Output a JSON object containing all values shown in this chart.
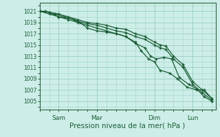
{
  "bg_color": "#cdeee8",
  "grid_color": "#a0d4c8",
  "line_color": "#1a5c35",
  "marker_color": "#1a5c35",
  "xlabel": "Pression niveau de la mer( hPa )",
  "xlabel_fontsize": 7.5,
  "yticks": [
    1005,
    1007,
    1009,
    1011,
    1013,
    1015,
    1017,
    1019,
    1021
  ],
  "ylim": [
    1003.5,
    1022.5
  ],
  "xtick_labels": [
    "Sam",
    "Mar",
    "Dim",
    "Lun"
  ],
  "xtick_positions": [
    1,
    3,
    6,
    8
  ],
  "xlim": [
    0,
    9.2
  ],
  "series": [
    [
      0,
      1021,
      0.3,
      1021,
      0.8,
      1020.5,
      1.3,
      1020,
      1.8,
      1019.5,
      2.1,
      1019,
      2.5,
      1018,
      3.0,
      1017.5,
      3.5,
      1017.3,
      4.0,
      1017,
      4.5,
      1016.5,
      5.0,
      1015.5,
      5.3,
      1014,
      5.7,
      1012.5,
      6.0,
      1012,
      6.3,
      1010.5,
      6.8,
      1010,
      7.2,
      1009,
      7.7,
      1007.5,
      8.2,
      1007,
      8.6,
      1007,
      9.0,
      1005.5
    ],
    [
      0,
      1021,
      0.5,
      1020.8,
      1.0,
      1020,
      1.5,
      1019.5,
      2.0,
      1019,
      2.5,
      1018.5,
      3.0,
      1018,
      3.5,
      1017.5,
      4.0,
      1017,
      4.5,
      1016.5,
      5.0,
      1015.3,
      5.5,
      1014.5,
      5.8,
      1013,
      6.1,
      1012.5,
      6.5,
      1012.8,
      6.9,
      1012.5,
      7.3,
      1009.2,
      7.8,
      1008,
      8.2,
      1007.2,
      8.6,
      1005.8,
      9.0,
      1005
    ],
    [
      0,
      1021,
      0.5,
      1020.5,
      1.0,
      1020,
      1.5,
      1019.8,
      2.0,
      1019.2,
      2.5,
      1018.8,
      3.0,
      1018.5,
      3.5,
      1018,
      4.0,
      1017.5,
      4.5,
      1017.2,
      5.0,
      1016.5,
      5.5,
      1016,
      6.0,
      1015,
      6.3,
      1014.5,
      6.6,
      1014.2,
      7.0,
      1012.5,
      7.5,
      1011,
      8.0,
      1008,
      8.5,
      1006.5,
      9.0,
      1005.2
    ],
    [
      0,
      1021,
      0.5,
      1020.8,
      1.0,
      1020.5,
      1.5,
      1020,
      2.0,
      1019.5,
      2.5,
      1019,
      3.0,
      1018.8,
      3.5,
      1018.5,
      4.0,
      1018,
      4.5,
      1017.8,
      5.0,
      1017,
      5.5,
      1016.5,
      6.0,
      1015.5,
      6.3,
      1015,
      6.6,
      1014.8,
      7.0,
      1013,
      7.5,
      1011.5,
      8.0,
      1008.5,
      8.5,
      1007,
      9.0,
      1005.5
    ]
  ]
}
